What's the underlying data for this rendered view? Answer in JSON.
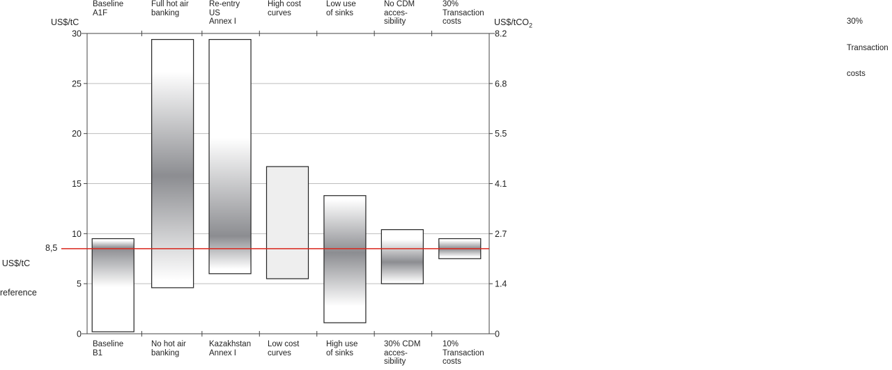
{
  "chart_data": {
    "type": "bar",
    "title": "",
    "left_axis_label": "US$/tC",
    "right_axis_label_main": "US$/tCO",
    "right_axis_label_sub": "2",
    "ylim": [
      0,
      30
    ],
    "left_ticks": [
      "0",
      "5",
      "10",
      "15",
      "20",
      "25",
      "30"
    ],
    "right_ticks": [
      "0",
      "1.4",
      "2.7",
      "4.1",
      "5.5",
      "6.8",
      "8.2"
    ],
    "grid": true,
    "reference": {
      "value": 8.5,
      "label_lines": [
        "US$/tC",
        "reference"
      ],
      "value_label": "8,5",
      "color": "#d9261c"
    },
    "categories_top": [
      [
        "Baseline",
        "A1F"
      ],
      [
        "Full hot air",
        "banking"
      ],
      [
        "Re-entry",
        "US",
        "Annex I"
      ],
      [
        "High cost",
        "curves"
      ],
      [
        "Low use",
        "of sinks"
      ],
      [
        "No CDM",
        "acces-",
        "sibility"
      ],
      [
        "30%",
        "Transaction",
        "costs"
      ]
    ],
    "categories_bottom": [
      [
        "Baseline",
        "B1"
      ],
      [
        "No hot air",
        "banking"
      ],
      [
        "Kazakhstan",
        "Annex I"
      ],
      [
        "Low cost",
        "curves"
      ],
      [
        "High use",
        "of sinks"
      ],
      [
        "30% CDM",
        "acces-",
        "sibility"
      ],
      [
        "10%",
        "Transaction",
        "costs"
      ]
    ],
    "ranges": [
      {
        "low": 0.2,
        "high": 9.5,
        "style": "gradient",
        "dark_at": 0.1
      },
      {
        "low": 4.6,
        "high": 29.4,
        "style": "gradient",
        "dark_at": 0.55
      },
      {
        "low": 6.0,
        "high": 29.4,
        "style": "gradient",
        "dark_at": 0.84
      },
      {
        "low": 5.5,
        "high": 16.7,
        "style": "flat"
      },
      {
        "low": 1.1,
        "high": 13.8,
        "style": "gradient",
        "dark_at": 0.45
      },
      {
        "low": 5.0,
        "high": 10.4,
        "style": "gradient",
        "dark_at": 0.6
      },
      {
        "low": 7.5,
        "high": 9.5,
        "style": "gradient",
        "dark_at": 0.5
      }
    ]
  },
  "stray_label": [
    "30%",
    "Transaction",
    "costs"
  ]
}
